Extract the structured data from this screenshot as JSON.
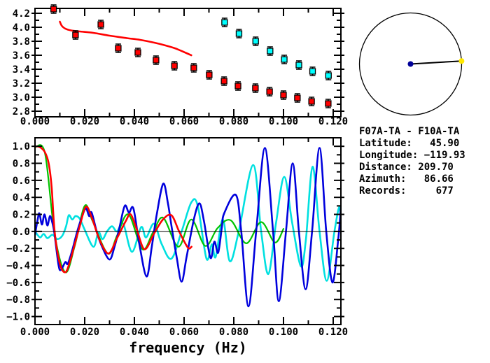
{
  "station_info": {
    "title": "F07A-TA - F10A-TA",
    "lines": [
      "Latitude:   45.90",
      "Longitude: −119.93",
      "Distance: 209.70",
      "Azimuth:   86.66",
      "Records:     677"
    ]
  },
  "colors": {
    "red": "#ff0000",
    "green": "#00c400",
    "blue": "#0000dd",
    "cyan_wave": "#00e0e0",
    "cyan_marker": "#00ffff",
    "black": "#000000",
    "navy_dot": "#000099",
    "yellow_dot": "#ffe800",
    "background": "#ffffff"
  },
  "chart_data": [
    {
      "type": "scatter",
      "name": "dispersion-panel",
      "title": "",
      "xlabel": "",
      "ylabel": "",
      "xlim": [
        0,
        0.1231
      ],
      "ylim": [
        2.72,
        4.27
      ],
      "grid": false,
      "xticks": [
        0,
        0.02,
        0.04,
        0.06,
        0.08,
        0.1,
        0.12
      ],
      "xtick_labels": [
        "0.000",
        "0.020",
        "0.040",
        "0.060",
        "0.080",
        "0.100",
        "0.120"
      ],
      "yticks": [
        2.8,
        3.0,
        3.2,
        3.4,
        3.6,
        3.8,
        4.0,
        4.2
      ],
      "ytick_labels": [
        "2.8",
        "3.0",
        "3.2",
        "3.4",
        "3.6",
        "3.8",
        "4.0",
        "4.2"
      ],
      "series": [
        {
          "name": "model-dispersion-curve",
          "type": "line",
          "color": "#ff0000",
          "width": 2.6,
          "points": [
            [
              0.01,
              4.08
            ],
            [
              0.0108,
              4.02
            ],
            [
              0.0122,
              3.98
            ],
            [
              0.0145,
              3.955
            ],
            [
              0.018,
              3.94
            ],
            [
              0.0235,
              3.92
            ],
            [
              0.03,
              3.88
            ],
            [
              0.037,
              3.845
            ],
            [
              0.0423,
              3.82
            ],
            [
              0.048,
              3.78
            ],
            [
              0.052,
              3.745
            ],
            [
              0.0563,
              3.7
            ],
            [
              0.06,
              3.645
            ],
            [
              0.0629,
              3.6
            ]
          ]
        },
        {
          "name": "measured-dispersion-red",
          "type": "scatter-square",
          "color": "#ff0000",
          "errbar": 0.05,
          "points": [
            [
              0.0075,
              4.26
            ],
            [
              0.0163,
              3.89
            ],
            [
              0.0265,
              4.04
            ],
            [
              0.0335,
              3.7
            ],
            [
              0.0414,
              3.64
            ],
            [
              0.0487,
              3.53
            ],
            [
              0.0561,
              3.45
            ],
            [
              0.0639,
              3.42
            ],
            [
              0.0701,
              3.32
            ],
            [
              0.0761,
              3.23
            ],
            [
              0.0817,
              3.16
            ],
            [
              0.0887,
              3.13
            ],
            [
              0.0944,
              3.08
            ],
            [
              0.1,
              3.03
            ],
            [
              0.1056,
              2.99
            ],
            [
              0.1113,
              2.94
            ],
            [
              0.118,
              2.91
            ]
          ]
        },
        {
          "name": "measured-dispersion-cyan",
          "type": "scatter-square",
          "color": "#00ffff",
          "errbar": 0.05,
          "points": [
            [
              0.0763,
              4.07
            ],
            [
              0.0821,
              3.91
            ],
            [
              0.0888,
              3.8
            ],
            [
              0.0946,
              3.66
            ],
            [
              0.1003,
              3.54
            ],
            [
              0.1062,
              3.46
            ],
            [
              0.1117,
              3.37
            ],
            [
              0.1181,
              3.31
            ]
          ]
        }
      ]
    },
    {
      "type": "line",
      "name": "spectra-panel",
      "title": "",
      "xlabel": "frequency (Hz)",
      "ylabel": "",
      "xlim": [
        0,
        0.1231
      ],
      "ylim": [
        -1.094,
        1.1
      ],
      "grid": false,
      "zero_line": true,
      "xticks": [
        0,
        0.02,
        0.04,
        0.06,
        0.08,
        0.1,
        0.12
      ],
      "xtick_labels": [
        "0.000",
        "0.020",
        "0.040",
        "0.060",
        "0.080",
        "0.100",
        "0.120"
      ],
      "yticks": [
        -1.0,
        -0.8,
        -0.6,
        -0.4,
        -0.2,
        0.0,
        0.2,
        0.4,
        0.6,
        0.8,
        1.0
      ],
      "ytick_labels": [
        "−1.0",
        "−0.8",
        "−0.6",
        "−0.4",
        "−0.2",
        "0.0",
        "0.2",
        "0.4",
        "0.6",
        "0.8",
        "1.0"
      ],
      "series": [
        {
          "name": "spectrum-cyan",
          "type": "line",
          "color": "#00e0e0",
          "width": 2.6,
          "points": [
            [
              0,
              0.0
            ],
            [
              0.002,
              -0.07
            ],
            [
              0.0035,
              -0.03
            ],
            [
              0.005,
              -0.08
            ],
            [
              0.007,
              -0.04
            ],
            [
              0.009,
              -0.09
            ],
            [
              0.011,
              -0.05
            ],
            [
              0.0125,
              0.06
            ],
            [
              0.0136,
              0.19
            ],
            [
              0.015,
              0.14
            ],
            [
              0.0163,
              0.18
            ],
            [
              0.018,
              0.15
            ],
            [
              0.02,
              0.02
            ],
            [
              0.0235,
              -0.18
            ],
            [
              0.0255,
              -0.01
            ],
            [
              0.0272,
              -0.09
            ],
            [
              0.029,
              0.0
            ],
            [
              0.031,
              0.06
            ],
            [
              0.033,
              0.0
            ],
            [
              0.0355,
              0.09
            ],
            [
              0.039,
              -0.24
            ],
            [
              0.0427,
              0.05
            ],
            [
              0.0447,
              -0.07
            ],
            [
              0.0479,
              0.09
            ],
            [
              0.051,
              -0.15
            ],
            [
              0.0549,
              -0.32
            ],
            [
              0.059,
              0.0
            ],
            [
              0.0629,
              0.34
            ],
            [
              0.0655,
              0.3
            ],
            [
              0.069,
              -0.32
            ],
            [
              0.0712,
              -0.15
            ],
            [
              0.0727,
              -0.3
            ],
            [
              0.0756,
              0.14
            ],
            [
              0.0784,
              -0.35
            ],
            [
              0.082,
              0.0
            ],
            [
              0.0878,
              0.78
            ],
            [
              0.091,
              0.0
            ],
            [
              0.0939,
              -0.5
            ],
            [
              0.097,
              0.1
            ],
            [
              0.1003,
              0.64
            ],
            [
              0.1035,
              0.1
            ],
            [
              0.107,
              -0.41
            ],
            [
              0.109,
              -0.1
            ],
            [
              0.1117,
              0.76
            ],
            [
              0.1145,
              0.0
            ],
            [
              0.1174,
              -0.58
            ],
            [
              0.1205,
              0.0
            ],
            [
              0.1225,
              0.29
            ],
            [
              0.1231,
              0.04
            ]
          ]
        },
        {
          "name": "spectrum-green",
          "type": "line",
          "color": "#00c400",
          "width": 2.2,
          "points": [
            [
              0,
              0.99
            ],
            [
              0.004,
              0.92
            ],
            [
              0.0079,
              -0.03
            ],
            [
              0.0122,
              -0.48
            ],
            [
              0.016,
              -0.17
            ],
            [
              0.02,
              0.3
            ],
            [
              0.0232,
              0.12
            ],
            [
              0.0293,
              -0.26
            ],
            [
              0.033,
              -0.05
            ],
            [
              0.0376,
              0.2
            ],
            [
              0.0432,
              -0.21
            ],
            [
              0.0475,
              -0.01
            ],
            [
              0.0516,
              0.16
            ],
            [
              0.0577,
              -0.18
            ],
            [
              0.0629,
              0.14
            ],
            [
              0.0685,
              -0.17
            ],
            [
              0.0735,
              0.04
            ],
            [
              0.0788,
              0.13
            ],
            [
              0.085,
              -0.14
            ],
            [
              0.091,
              0.11
            ],
            [
              0.0965,
              -0.13
            ],
            [
              0.1,
              0.03
            ]
          ]
        },
        {
          "name": "spectrum-blue",
          "type": "line",
          "color": "#0000dd",
          "width": 2.6,
          "points": [
            [
              0,
              -0.04
            ],
            [
              0.0012,
              0.16
            ],
            [
              0.0018,
              0.21
            ],
            [
              0.0028,
              0.08
            ],
            [
              0.0038,
              0.2
            ],
            [
              0.005,
              0.07
            ],
            [
              0.006,
              0.18
            ],
            [
              0.007,
              0.1
            ],
            [
              0.0078,
              -0.02
            ],
            [
              0.0095,
              -0.4
            ],
            [
              0.0105,
              -0.45
            ],
            [
              0.0122,
              -0.36
            ],
            [
              0.0132,
              -0.38
            ],
            [
              0.015,
              -0.22
            ],
            [
              0.017,
              0.0
            ],
            [
              0.019,
              0.18
            ],
            [
              0.0205,
              0.27
            ],
            [
              0.0218,
              0.18
            ],
            [
              0.0228,
              0.22
            ],
            [
              0.025,
              -0.02
            ],
            [
              0.027,
              -0.18
            ],
            [
              0.03,
              -0.33
            ],
            [
              0.032,
              -0.18
            ],
            [
              0.0338,
              0.02
            ],
            [
              0.0361,
              0.3
            ],
            [
              0.0378,
              0.22
            ],
            [
              0.0396,
              0.27
            ],
            [
              0.042,
              -0.15
            ],
            [
              0.0449,
              -0.53
            ],
            [
              0.047,
              -0.18
            ],
            [
              0.049,
              0.2
            ],
            [
              0.0516,
              0.56
            ],
            [
              0.0535,
              0.33
            ],
            [
              0.055,
              0.05
            ],
            [
              0.057,
              -0.3
            ],
            [
              0.059,
              -0.59
            ],
            [
              0.061,
              -0.3
            ],
            [
              0.064,
              0.15
            ],
            [
              0.0662,
              0.33
            ],
            [
              0.068,
              0.12
            ],
            [
              0.0706,
              -0.31
            ],
            [
              0.0722,
              -0.12
            ],
            [
              0.0737,
              -0.25
            ],
            [
              0.0752,
              0.05
            ],
            [
              0.0761,
              0.21
            ],
            [
              0.0808,
              0.43
            ],
            [
              0.083,
              0.0
            ],
            [
              0.0859,
              -0.88
            ],
            [
              0.089,
              0.0
            ],
            [
              0.0925,
              0.98
            ],
            [
              0.0958,
              0.0
            ],
            [
              0.0981,
              -0.82
            ],
            [
              0.101,
              0.0
            ],
            [
              0.1037,
              0.8
            ],
            [
              0.1062,
              0.0
            ],
            [
              0.1089,
              -0.68
            ],
            [
              0.1115,
              0.0
            ],
            [
              0.1145,
              0.98
            ],
            [
              0.1172,
              0.0
            ],
            [
              0.1197,
              -0.6
            ],
            [
              0.122,
              -0.1
            ],
            [
              0.1231,
              0.28
            ]
          ]
        },
        {
          "name": "spectrum-red",
          "type": "line",
          "color": "#ff0000",
          "width": 2.6,
          "points": [
            [
              0,
              1.0
            ],
            [
              0.002,
              0.99
            ],
            [
              0.004,
              0.93
            ],
            [
              0.0055,
              0.8
            ],
            [
              0.0067,
              0.52
            ],
            [
              0.0079,
              0.0
            ],
            [
              0.01,
              -0.38
            ],
            [
              0.0122,
              -0.48
            ],
            [
              0.014,
              -0.36
            ],
            [
              0.016,
              -0.15
            ],
            [
              0.018,
              0.06
            ],
            [
              0.0205,
              0.29
            ],
            [
              0.023,
              0.15
            ],
            [
              0.026,
              -0.1
            ],
            [
              0.0296,
              -0.26
            ],
            [
              0.033,
              -0.08
            ],
            [
              0.0365,
              0.12
            ],
            [
              0.0385,
              0.2
            ],
            [
              0.041,
              0.02
            ],
            [
              0.0441,
              -0.21
            ],
            [
              0.048,
              -0.02
            ],
            [
              0.0515,
              0.14
            ],
            [
              0.0549,
              0.19
            ],
            [
              0.058,
              0.0
            ],
            [
              0.0615,
              -0.19
            ],
            [
              0.063,
              -0.18
            ]
          ]
        }
      ]
    },
    {
      "type": "azimuth-circle",
      "name": "azimuth-panel",
      "azimuth_deg": 86.66,
      "center_dot_color": "#000099",
      "target_dot_color": "#ffe800"
    }
  ]
}
